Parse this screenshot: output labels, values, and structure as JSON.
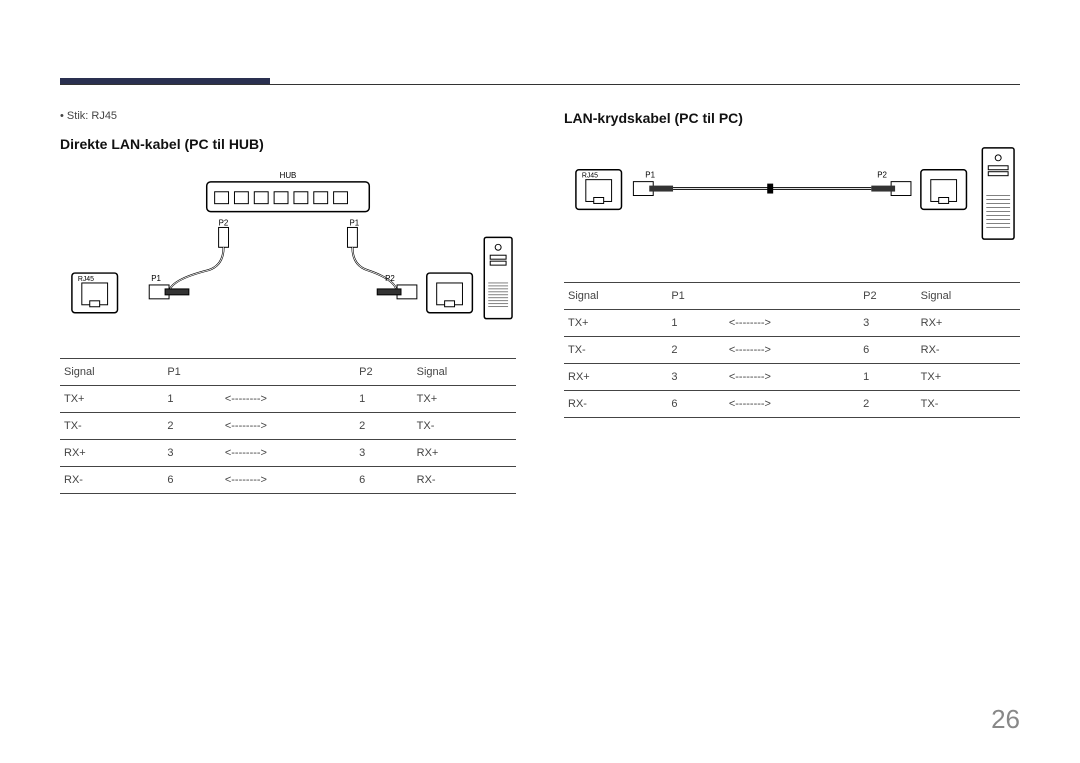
{
  "page": {
    "number": "26",
    "accent_color": "#2a3050",
    "rule_color": "#333333",
    "text_color": "#444444"
  },
  "left": {
    "bullet": "Stik: RJ45",
    "heading": "Direkte LAN-kabel (PC til HUB)",
    "diagram": {
      "hub_label": "HUB",
      "hub_p2": "P2",
      "hub_p1": "P1",
      "rj45_label": "RJ45",
      "left_p": "P1",
      "right_p": "P2"
    },
    "table": {
      "headers": [
        "Signal",
        "P1",
        "",
        "P2",
        "Signal"
      ],
      "rows": [
        [
          "TX+",
          "1",
          "<-------->",
          "1",
          "TX+"
        ],
        [
          "TX-",
          "2",
          "<-------->",
          "2",
          "TX-"
        ],
        [
          "RX+",
          "3",
          "<-------->",
          "3",
          "RX+"
        ],
        [
          "RX-",
          "6",
          "<-------->",
          "6",
          "RX-"
        ]
      ]
    }
  },
  "right": {
    "heading": "LAN-krydskabel (PC til PC)",
    "diagram": {
      "rj45_label": "RJ45",
      "left_p": "P1",
      "right_p": "P2"
    },
    "table": {
      "headers": [
        "Signal",
        "P1",
        "",
        "P2",
        "Signal"
      ],
      "rows": [
        [
          "TX+",
          "1",
          "<-------->",
          "3",
          "RX+"
        ],
        [
          "TX-",
          "2",
          "<-------->",
          "6",
          "RX-"
        ],
        [
          "RX+",
          "3",
          "<-------->",
          "1",
          "TX+"
        ],
        [
          "RX-",
          "6",
          "<-------->",
          "2",
          "TX-"
        ]
      ]
    }
  }
}
